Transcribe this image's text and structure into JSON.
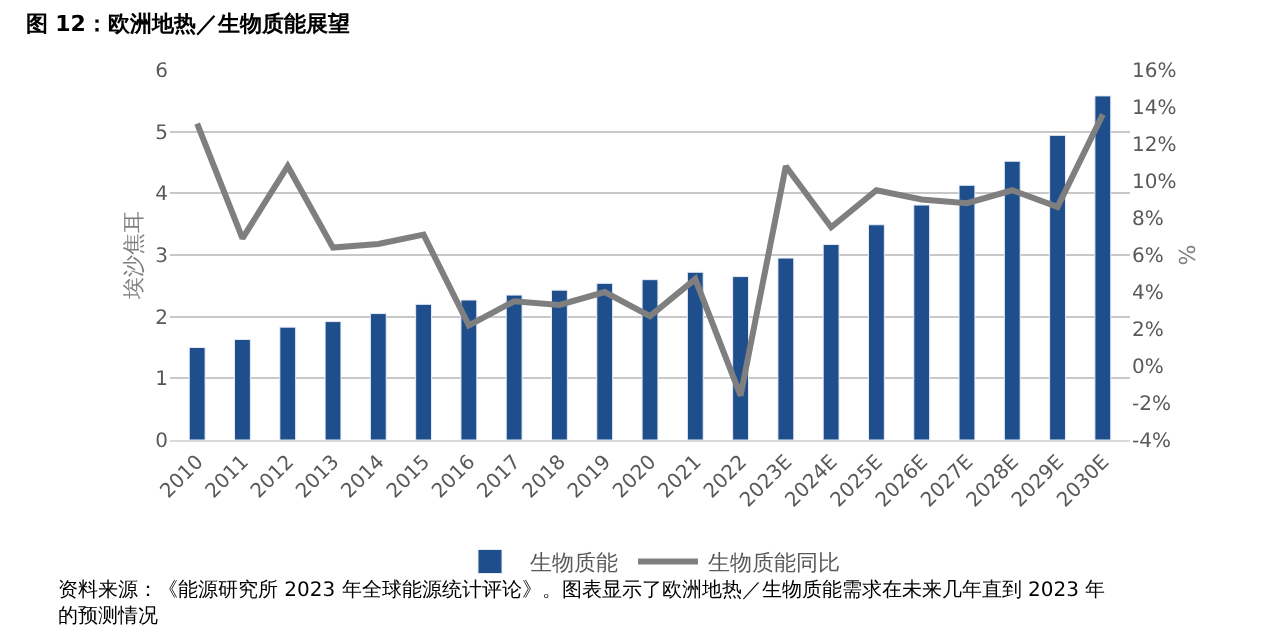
{
  "chart_data": {
    "type": "bar",
    "title": "图 12：欧洲地热／生物质能展望",
    "ylabel": "埃沙焦耳",
    "y2label": "%",
    "categories": [
      "2010",
      "2011",
      "2012",
      "2013",
      "2014",
      "2015",
      "2016",
      "2017",
      "2018",
      "2019",
      "2020",
      "2021",
      "2022",
      "2023E",
      "2024E",
      "2025E",
      "2026E",
      "2027E",
      "2028E",
      "2029E",
      "2030E"
    ],
    "series": [
      {
        "name": "生物质能",
        "color": "#1f4e8c",
        "values": [
          1.5,
          1.63,
          1.83,
          1.92,
          2.05,
          2.2,
          2.27,
          2.35,
          2.43,
          2.54,
          2.6,
          2.72,
          2.65,
          2.95,
          3.17,
          3.49,
          3.81,
          4.13,
          4.52,
          4.94,
          5.58
        ]
      },
      {
        "name": "生物质能同比",
        "type": "line",
        "axis": "y2",
        "color": "#7f7f7f",
        "values": [
          13.1,
          6.9,
          10.8,
          6.4,
          6.6,
          7.1,
          2.2,
          3.5,
          3.3,
          4.0,
          2.7,
          4.7,
          -1.6,
          10.8,
          7.5,
          9.5,
          9.0,
          8.8,
          9.5,
          8.6,
          13.6
        ]
      }
    ],
    "ylim": [
      0,
      6
    ],
    "yticks": [
      0,
      1,
      2,
      3,
      4,
      5,
      6
    ],
    "y2lim": [
      -4,
      16
    ],
    "y2ticks": [
      {
        "value": -4,
        "label": "-4%"
      },
      {
        "value": -2,
        "label": "-2%"
      },
      {
        "value": 0,
        "label": "0%"
      },
      {
        "value": 2,
        "label": "2%"
      },
      {
        "value": 4,
        "label": "4%"
      },
      {
        "value": 6,
        "label": "6%"
      },
      {
        "value": 8,
        "label": "8%"
      },
      {
        "value": 10,
        "label": "10%"
      },
      {
        "value": 12,
        "label": "12%"
      },
      {
        "value": 14,
        "label": "14%"
      },
      {
        "value": 16,
        "label": "16%"
      }
    ],
    "grid": "y",
    "legend": "bottom",
    "marker": "none",
    "line_style": "solid",
    "annotations": [
      "资料来源：《能源研究所 2023 年全球能源统计评论》。图表显示了欧洲地热／生物质能需求在未来几年直到 2023 年的预测情况"
    ]
  }
}
